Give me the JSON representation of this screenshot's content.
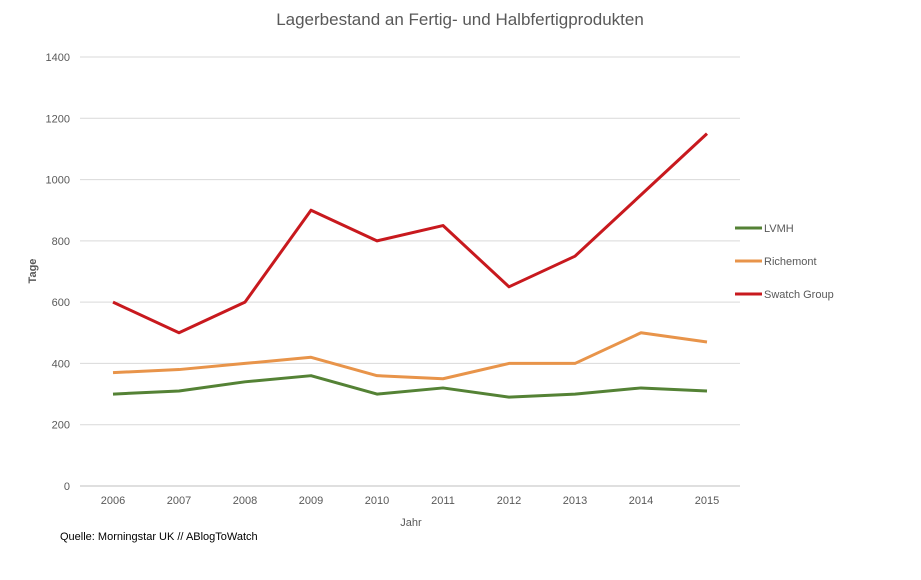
{
  "chart_data": {
    "type": "line",
    "title": "Lagerbestand an Fertig- und Halbfertigprodukten",
    "xlabel": "Jahr",
    "ylabel": "Tage",
    "ylim": [
      0,
      1400
    ],
    "yticks": [
      0,
      200,
      400,
      600,
      800,
      1000,
      1200,
      1400
    ],
    "categories": [
      "2006",
      "2007",
      "2008",
      "2009",
      "2010",
      "2011",
      "2012",
      "2013",
      "2014",
      "2015"
    ],
    "grid": true,
    "legend_position": "right",
    "series": [
      {
        "name": "LVMH",
        "color": "#548235",
        "values": [
          300,
          310,
          340,
          360,
          300,
          320,
          290,
          300,
          320,
          310
        ]
      },
      {
        "name": "Richemont",
        "color": "#e8944a",
        "values": [
          370,
          380,
          400,
          420,
          360,
          350,
          400,
          400,
          500,
          470
        ]
      },
      {
        "name": "Swatch Group",
        "color": "#c8191e",
        "values": [
          600,
          500,
          600,
          900,
          800,
          850,
          650,
          750,
          950,
          1150
        ]
      }
    ],
    "source": "Quelle: Morningstar UK // ABlogToWatch"
  }
}
